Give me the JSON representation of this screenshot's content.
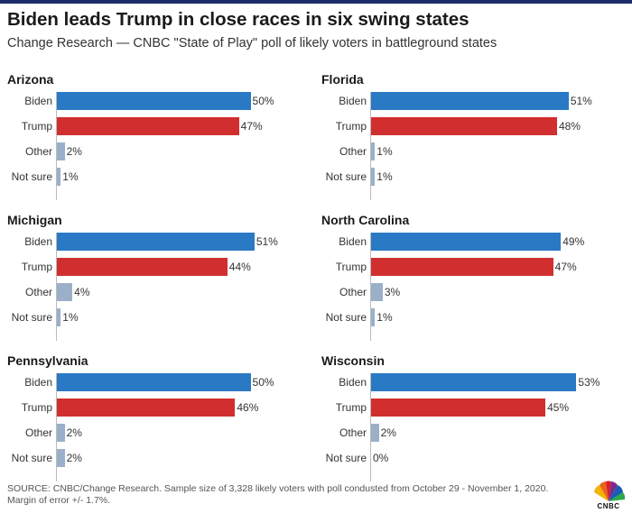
{
  "header": {
    "title": "Biden leads Trump in close races in six swing states",
    "subtitle": "Change Research — CNBC \"State of Play\" poll of likely voters in battleground states"
  },
  "footer": {
    "source_line1": "SOURCE: CNBC/Change Research. Sample size of 3,328 likely voters with poll condusted from October 29 - November 1, 2020.",
    "source_line2": "Margin of error +/- 1.7%.",
    "logo": "CNBC"
  },
  "colors": {
    "biden": "#2a79c4",
    "trump": "#d12f2f",
    "other": "#9bb0c8",
    "accent": "#1d2d6b"
  },
  "chart_data": {
    "type": "bar",
    "orientation": "horizontal",
    "categories": [
      "Biden",
      "Trump",
      "Other",
      "Not sure"
    ],
    "value_suffix": "%",
    "xlim": [
      0,
      55
    ],
    "panels": [
      {
        "state": "Arizona",
        "values": [
          50,
          47,
          2,
          1
        ]
      },
      {
        "state": "Florida",
        "values": [
          51,
          48,
          1,
          1
        ]
      },
      {
        "state": "Michigan",
        "values": [
          51,
          44,
          4,
          1
        ]
      },
      {
        "state": "North Carolina",
        "values": [
          49,
          47,
          3,
          1
        ]
      },
      {
        "state": "Pennsylvania",
        "values": [
          50,
          46,
          2,
          2
        ]
      },
      {
        "state": "Wisconsin",
        "values": [
          53,
          45,
          2,
          0
        ]
      }
    ]
  }
}
